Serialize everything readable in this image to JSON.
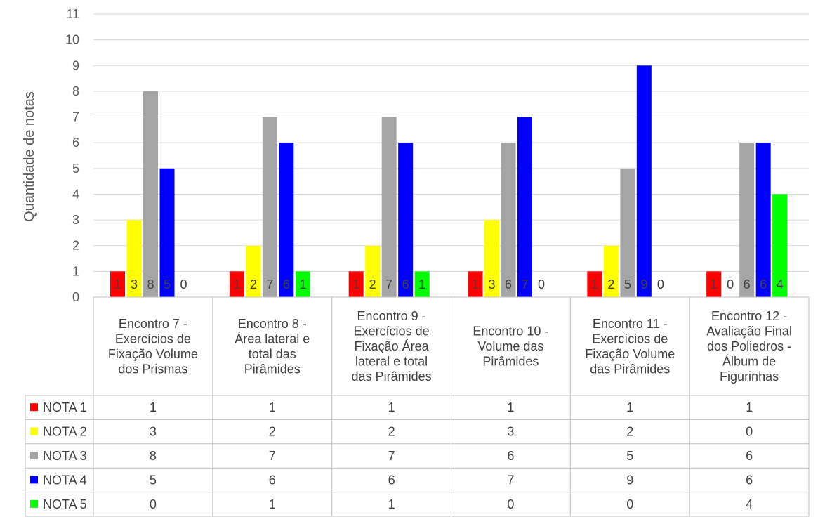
{
  "chart_data": {
    "type": "bar",
    "ylabel": "Quantidade de notas",
    "ylim": [
      0,
      11
    ],
    "yticks": [
      0,
      1,
      2,
      3,
      4,
      5,
      6,
      7,
      8,
      9,
      10,
      11
    ],
    "grid": true,
    "legend": "data-table",
    "categories": [
      [
        "Encontro 7 -",
        "Exercícios de",
        "Fixação Volume",
        "dos Prismas"
      ],
      [
        "Encontro 8 -",
        "Área lateral e",
        "total das",
        "Pirâmides"
      ],
      [
        "Encontro 9 -",
        "Exercícios de",
        "Fixação Área",
        "lateral e total",
        "das Pirâmides"
      ],
      [
        "Encontro 10 -",
        "Volume das",
        "Pirâmides"
      ],
      [
        "Encontro 11 -",
        "Exercícios de",
        "Fixação Volume",
        "das Pirâmides"
      ],
      [
        "Encontro 12 -",
        "Avaliação Final",
        "dos Poliedros -",
        "Álbum de",
        "Figurinhas"
      ]
    ],
    "series": [
      {
        "name": "NOTA 1",
        "color": "#ff0000",
        "values": [
          1,
          1,
          1,
          1,
          1,
          1
        ]
      },
      {
        "name": "NOTA 2",
        "color": "#ffff00",
        "values": [
          3,
          2,
          2,
          3,
          2,
          0
        ]
      },
      {
        "name": "NOTA 3",
        "color": "#a5a5a5",
        "values": [
          8,
          7,
          7,
          6,
          5,
          6
        ]
      },
      {
        "name": "NOTA 4",
        "color": "#0000ff",
        "values": [
          5,
          6,
          6,
          7,
          9,
          6
        ]
      },
      {
        "name": "NOTA 5",
        "color": "#00ff00",
        "values": [
          0,
          1,
          1,
          0,
          0,
          4
        ]
      }
    ]
  }
}
